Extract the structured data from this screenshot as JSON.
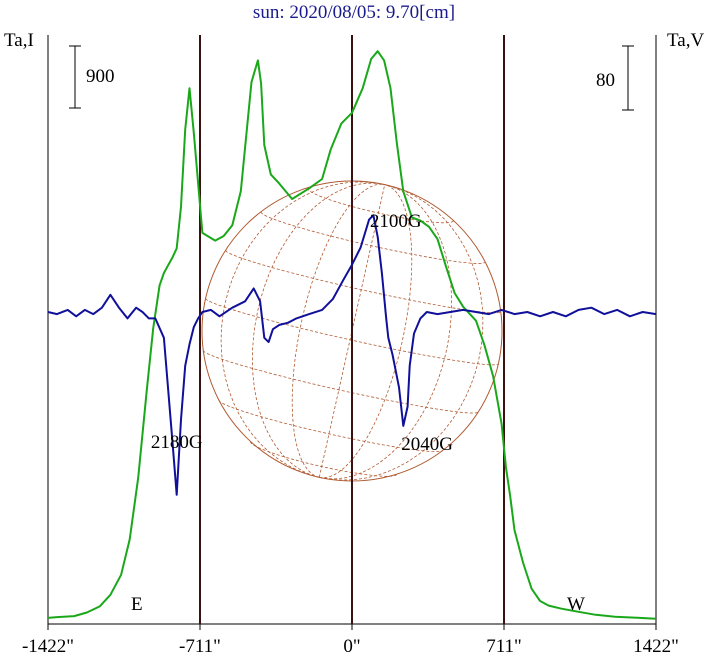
{
  "title": "sun: 2020/08/05: 9.70[cm]",
  "left_axis_label": "Ta,I",
  "right_axis_label": "Ta,V",
  "scale_bar_left": "900",
  "scale_bar_right": "80",
  "colors": {
    "intensity": "#1aa81a",
    "polarization": "#10109a",
    "frame": "#000000",
    "markers": "#3a1010",
    "solar_grid": "#b05a30",
    "title": "#1a1a8c"
  },
  "chart_data": {
    "type": "line",
    "title": "sun: 2020/08/05: 9.70[cm]",
    "xlabel": "",
    "x_ticks": [
      -1422,
      -711,
      0,
      711,
      1422
    ],
    "x_tick_labels": [
      "-1422\"",
      "-711\"",
      "0\"",
      "711\"",
      "1422\""
    ],
    "xlim": [
      -1422,
      1422
    ],
    "vertical_markers": [
      -711,
      0,
      711
    ],
    "limb_labels": {
      "east": "E",
      "west": "W"
    },
    "series": [
      {
        "key": "intensity",
        "color": "#1aa81a",
        "x": [
          -1422,
          -1380,
          -1300,
          -1240,
          -1180,
          -1130,
          -1080,
          -1040,
          -1000,
          -960,
          -930,
          -900,
          -880,
          -860,
          -840,
          -820,
          -800,
          -780,
          -760,
          -740,
          -700,
          -640,
          -600,
          -560,
          -520,
          -470,
          -440,
          -425,
          -410,
          -380,
          -340,
          -280,
          -200,
          -140,
          -100,
          -50,
          0,
          50,
          90,
          120,
          150,
          180,
          210,
          240,
          280,
          320,
          360,
          400,
          440,
          480,
          520,
          580,
          620,
          660,
          700,
          720,
          740,
          760,
          800,
          840,
          880,
          920,
          980,
          1060,
          1140,
          1230,
          1320,
          1422
        ],
        "y": [
          20,
          25,
          32,
          55,
          95,
          170,
          300,
          530,
          930,
          1500,
          1900,
          2180,
          2260,
          2310,
          2360,
          2420,
          2690,
          3190,
          3460,
          3170,
          2520,
          2470,
          2500,
          2570,
          2790,
          3500,
          3640,
          3490,
          3090,
          2900,
          2840,
          2740,
          2810,
          2870,
          3060,
          3230,
          3300,
          3460,
          3650,
          3700,
          3640,
          3460,
          3100,
          2790,
          2620,
          2600,
          2560,
          2480,
          2300,
          2130,
          2040,
          1950,
          1790,
          1590,
          1280,
          1000,
          810,
          590,
          380,
          210,
          130,
          100,
          80,
          60,
          40,
          28,
          22,
          15
        ]
      },
      {
        "key": "polarization",
        "color": "#10109a",
        "x": [
          -1422,
          -1380,
          -1330,
          -1290,
          -1250,
          -1210,
          -1170,
          -1130,
          -1090,
          -1050,
          -1010,
          -980,
          -950,
          -920,
          -880,
          -840,
          -820,
          -800,
          -780,
          -760,
          -740,
          -720,
          -700,
          -660,
          -620,
          -560,
          -500,
          -460,
          -430,
          -410,
          -390,
          -370,
          -340,
          -300,
          -260,
          -200,
          -140,
          -90,
          -40,
          0,
          40,
          80,
          100,
          120,
          140,
          160,
          170,
          190,
          220,
          240,
          260,
          270,
          290,
          320,
          350,
          400,
          460,
          520,
          580,
          640,
          700,
          760,
          820,
          880,
          940,
          1000,
          1060,
          1120,
          1180,
          1240,
          1300,
          1360,
          1422
        ],
        "y": [
          0,
          -1,
          1,
          -2,
          1,
          -1,
          2,
          8,
          2,
          -3,
          2,
          0,
          -3,
          -3,
          -12,
          -60,
          -85,
          -50,
          -25,
          -15,
          -7,
          -3,
          0,
          1,
          -2,
          2,
          5,
          11,
          5,
          -12,
          -14,
          -8,
          -6,
          -5,
          -3,
          -1,
          1,
          6,
          15,
          22,
          30,
          43,
          45,
          35,
          18,
          -3,
          -12,
          -20,
          -35,
          -53,
          -44,
          -25,
          -10,
          -3,
          0,
          -1,
          0,
          1,
          0,
          -1,
          1,
          -1,
          0,
          -2,
          0,
          -2,
          1,
          2,
          -1,
          1,
          -2,
          0,
          -1
        ]
      }
    ],
    "annotations": [
      {
        "text": "2180G",
        "x": -805,
        "series": "polarization"
      },
      {
        "text": "2100G",
        "x": 140,
        "series": "polarization"
      },
      {
        "text": "2040G",
        "x": 240,
        "series": "polarization"
      }
    ]
  }
}
